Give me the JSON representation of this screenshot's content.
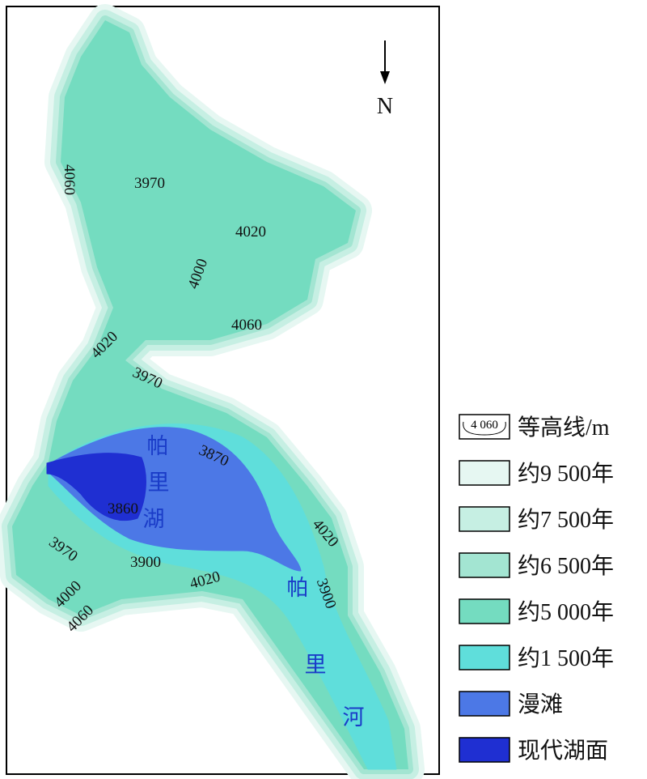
{
  "map": {
    "north": "N",
    "contour_labels": [
      "4060",
      "3970",
      "4020",
      "4000",
      "4060",
      "4020",
      "3970",
      "3870",
      "3860",
      "3970",
      "3900",
      "4020",
      "4020",
      "3900",
      "4000",
      "4060"
    ],
    "place_labels": [
      "帕",
      "里",
      "湖",
      "帕",
      "里",
      "河"
    ],
    "legend": [
      {
        "label": "等高线/m",
        "sample": "4 060"
      },
      {
        "label": "约9 500年",
        "color": "#e6f7f2"
      },
      {
        "label": "约7 500年",
        "color": "#c6efe3"
      },
      {
        "label": "约6 500年",
        "color": "#a3e5d2"
      },
      {
        "label": "约5 000年",
        "color": "#74dcc0"
      },
      {
        "label": "约1 500年",
        "color": "#5fdedb"
      },
      {
        "label": "漫滩",
        "color": "#4c78e6"
      },
      {
        "label": "现代湖面",
        "color": "#1f2fd2"
      }
    ]
  }
}
